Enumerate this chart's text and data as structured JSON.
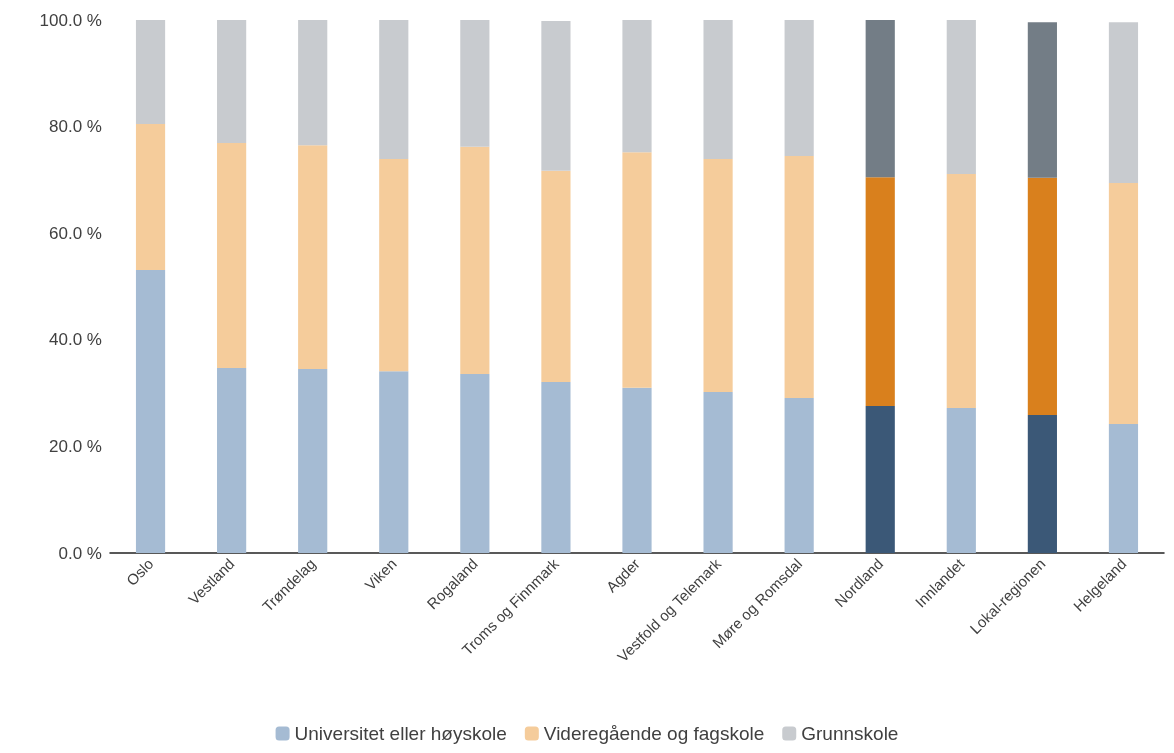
{
  "chart_data": {
    "type": "bar",
    "stacked": true,
    "categories": [
      "Oslo",
      "Vestland",
      "Trøndelag",
      "Viken",
      "Rogaland",
      "Troms og Finnmark",
      "Agder",
      "Vestfold og Telemark",
      "Møre og Romsdal",
      "Nordland",
      "Innlandet",
      "Lokal-regionen",
      "Helgeland"
    ],
    "series": [
      {
        "name": "Universitet eller høyskole",
        "color": "#a5bbd3",
        "colors": [
          "#a5bbd3",
          "#a5bbd3",
          "#a5bbd3",
          "#a5bbd3",
          "#a5bbd3",
          "#a5bbd3",
          "#a5bbd3",
          "#a5bbd3",
          "#a5bbd3",
          "#3b5877",
          "#a5bbd3",
          "#3b5877",
          "#a5bbd3"
        ],
        "values": [
          53.1,
          34.7,
          34.5,
          34.1,
          33.6,
          32.1,
          31.0,
          30.2,
          29.1,
          27.6,
          27.2,
          25.9,
          24.2
        ]
      },
      {
        "name": "Videregående og fagskole",
        "color": "#f5cc9b",
        "colors": [
          "#f5cc9b",
          "#f5cc9b",
          "#f5cc9b",
          "#f5cc9b",
          "#f5cc9b",
          "#f5cc9b",
          "#f5cc9b",
          "#f5cc9b",
          "#f5cc9b",
          "#d9801d",
          "#f5cc9b",
          "#d9801d",
          "#f5cc9b"
        ],
        "values": [
          27.4,
          42.2,
          42.0,
          39.8,
          42.6,
          39.6,
          44.2,
          43.7,
          45.4,
          42.9,
          43.9,
          44.5,
          45.2
        ]
      },
      {
        "name": "Grunnskole",
        "color": "#c8cbcf",
        "colors": [
          "#c8cbcf",
          "#c8cbcf",
          "#c8cbcf",
          "#c8cbcf",
          "#c8cbcf",
          "#c8cbcf",
          "#c8cbcf",
          "#c8cbcf",
          "#c8cbcf",
          "#737d86",
          "#c8cbcf",
          "#737d86",
          "#c8cbcf"
        ],
        "values": [
          19.5,
          23.1,
          23.5,
          26.1,
          23.8,
          28.1,
          24.8,
          26.1,
          25.5,
          29.5,
          28.9,
          29.2,
          30.2
        ]
      }
    ],
    "ylim": [
      0,
      100
    ],
    "yticks": [
      {
        "value": 0,
        "label": "0.0 %"
      },
      {
        "value": 20,
        "label": "20.0 %"
      },
      {
        "value": 40,
        "label": "40.0 %"
      },
      {
        "value": 60,
        "label": "60.0 %"
      },
      {
        "value": 80,
        "label": "80.0 %"
      },
      {
        "value": 100,
        "label": "100.0 %"
      }
    ],
    "grid": false,
    "legend": "bottom"
  }
}
